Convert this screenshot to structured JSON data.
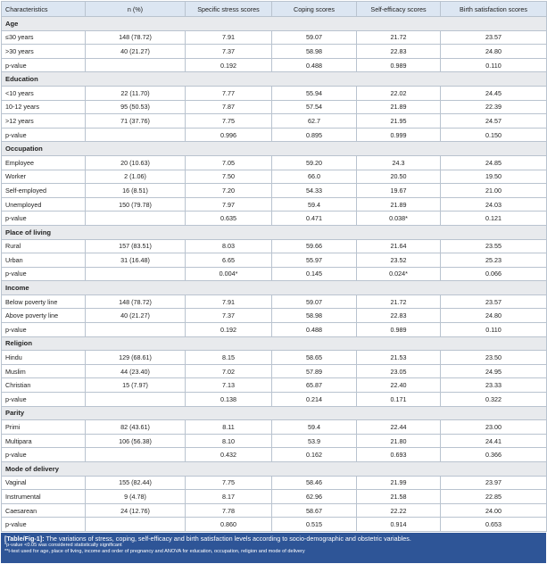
{
  "table": {
    "columns": [
      "Characteristics",
      "n (%)",
      "Specific stress scores",
      "Coping scores",
      "Self-efficacy scores",
      "Birth satisfaction scores"
    ],
    "sections": [
      {
        "title": "Age",
        "rows": [
          [
            "≤30 years",
            "148 (78.72)",
            "7.91",
            "59.07",
            "21.72",
            "23.57"
          ],
          [
            ">30 years",
            "40 (21.27)",
            "7.37",
            "58.98",
            "22.83",
            "24.80"
          ],
          [
            "p-value",
            "0.192",
            "0.488",
            "0.989",
            "0.110"
          ]
        ]
      },
      {
        "title": "Education",
        "rows": [
          [
            "<10 years",
            "22 (11.70)",
            "7.77",
            "55.94",
            "22.02",
            "24.45"
          ],
          [
            "10-12 years",
            "95 (50.53)",
            "7.87",
            "57.54",
            "21.89",
            "22.39"
          ],
          [
            ">12 years",
            "71 (37.76)",
            "7.75",
            "62.7",
            "21.95",
            "24.57"
          ],
          [
            "p-value",
            "0.996",
            "0.895",
            "0.999",
            "0.150"
          ]
        ]
      },
      {
        "title": "Occupation",
        "rows": [
          [
            "Employee",
            "20 (10.63)",
            "7.05",
            "59.20",
            "24.3",
            "24.85"
          ],
          [
            "Worker",
            "2 (1.06)",
            "7.50",
            "66.0",
            "20.50",
            "19.50"
          ],
          [
            "Self-employed",
            "16 (8.51)",
            "7.20",
            "54.33",
            "19.67",
            "21.00"
          ],
          [
            "Unemployed",
            "150 (79.78)",
            "7.97",
            "59.4",
            "21.89",
            "24.03"
          ],
          [
            "p-value",
            "0.635",
            "0.471",
            "0.038*",
            "0.121"
          ]
        ]
      },
      {
        "title": "Place of living",
        "rows": [
          [
            "Rural",
            "157 (83.51)",
            "8.03",
            "59.66",
            "21.64",
            "23.55"
          ],
          [
            "Urban",
            "31 (16.48)",
            "6.65",
            "55.97",
            "23.52",
            "25.23"
          ],
          [
            "p-value",
            "0.004*",
            "0.145",
            "0.024*",
            "0.066"
          ]
        ]
      },
      {
        "title": "Income",
        "rows": [
          [
            "Below poverty line",
            "148 (78.72)",
            "7.91",
            "59.07",
            "21.72",
            "23.57"
          ],
          [
            "Above poverty line",
            "40 (21.27)",
            "7.37",
            "58.98",
            "22.83",
            "24.80"
          ],
          [
            "p-value",
            "0.192",
            "0.488",
            "0.989",
            "0.110"
          ]
        ]
      },
      {
        "title": "Religion",
        "rows": [
          [
            "Hindu",
            "129 (68.61)",
            "8.15",
            "58.65",
            "21.53",
            "23.50"
          ],
          [
            "Muslim",
            "44 (23.40)",
            "7.02",
            "57.89",
            "23.05",
            "24.95"
          ],
          [
            "Christian",
            "15 (7.97)",
            "7.13",
            "65.87",
            "22.40",
            "23.33"
          ],
          [
            "p-value",
            "0.138",
            "0.214",
            "0.171",
            "0.322"
          ]
        ]
      },
      {
        "title": "Parity",
        "rows": [
          [
            "Primi",
            "82 (43.61)",
            "8.11",
            "59.4",
            "22.44",
            "23.00"
          ],
          [
            "Multipara",
            "106 (56.38)",
            "8.10",
            "53.9",
            "21.80",
            "24.41"
          ],
          [
            "p-value",
            "0.432",
            "0.162",
            "0.693",
            "0.366"
          ]
        ]
      },
      {
        "title": "Mode of delivery",
        "rows": [
          [
            "Vaginal",
            "155 (82.44)",
            "7.75",
            "58.46",
            "21.99",
            "23.97"
          ],
          [
            "Instrumental",
            "9 (4.78)",
            "8.17",
            "62.96",
            "21.58",
            "22.85"
          ],
          [
            "Caesarean",
            "24 (12.76)",
            "7.78",
            "58.67",
            "22.22",
            "24.00"
          ],
          [
            "p-value",
            "0.860",
            "0.515",
            "0.914",
            "0.653"
          ]
        ]
      }
    ]
  },
  "footer": {
    "label": "[Table/Fig-1]:",
    "caption": "The variations of stress, coping, self-efficacy and birth satisfaction levels according to socio-demographic and obstetric variables.",
    "notes": [
      "*p-value <0.05 was considered statistically significant",
      "**t-test used for age, place of living, income and order of pregnancy and ANOVA for education, occupation, religion and mode of delivery"
    ]
  }
}
